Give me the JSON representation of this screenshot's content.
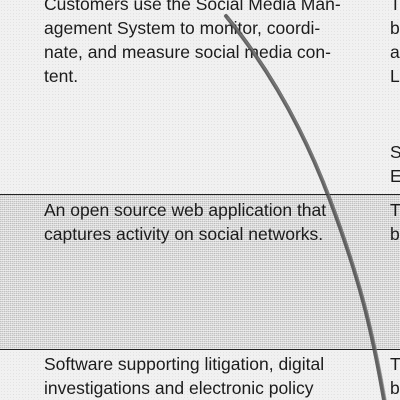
{
  "rows": [
    {
      "lines": [
        "Customers use the Social Media Man-",
        "agement System to monitor, coordi-",
        "nate, and measure social media con-",
        "tent."
      ],
      "side_letters": [
        "T",
        "b",
        "a",
        "L",
        "S",
        "E"
      ]
    },
    {
      "lines": [
        "An open source web application that",
        "captures activity on social networks."
      ],
      "side_letters": [
        "T",
        "b"
      ]
    },
    {
      "lines": [
        "Software supporting litigation, digital",
        "investigations and electronic policy"
      ],
      "side_letters": [
        "T",
        "b"
      ]
    }
  ]
}
